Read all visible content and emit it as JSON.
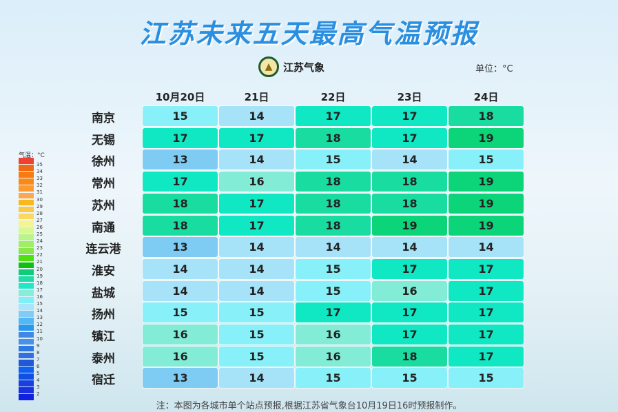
{
  "title": "江苏未来五天最高气温预报",
  "logo_text": "江苏气象",
  "unit": "单位：°C",
  "legend": {
    "title": "气温：°C",
    "labels": [
      "35",
      "34",
      "33",
      "32",
      "31",
      "30",
      "29",
      "28",
      "27",
      "26",
      "25",
      "24",
      "23",
      "22",
      "21",
      "20",
      "19",
      "18",
      "17",
      "16",
      "15",
      "14",
      "13",
      "12",
      "11",
      "10",
      "9",
      "8",
      "7",
      "6",
      "5",
      "4",
      "3",
      "2"
    ],
    "colors": [
      "#f04030",
      "#f06a10",
      "#f87a10",
      "#fa8a18",
      "#fa9a30",
      "#fca850",
      "#fcb818",
      "#fcc848",
      "#fcd860",
      "#f4f490",
      "#d8f890",
      "#b8f48a",
      "#a0ee68",
      "#88e848",
      "#50e010",
      "#10c010",
      "#10cc78",
      "#20dca8",
      "#20e8c8",
      "#88ecd8",
      "#80f0f8",
      "#a8e4fa",
      "#80ccf4",
      "#50b8f4",
      "#2898ee",
      "#4088e8",
      "#4890e8",
      "#3078e0",
      "#3070e0",
      "#2058d8",
      "#1060f0",
      "#1050e0",
      "#1840e0",
      "#1830e0",
      "#1020e0"
    ]
  },
  "colors": {
    "13": "#7ecbf4",
    "14": "#a6e2f8",
    "15": "#88f0f8",
    "16": "#82ecd6",
    "17": "#10e8c4",
    "18": "#18dca0",
    "19": "#0cd478"
  },
  "columns": [
    "10月20日",
    "21日",
    "22日",
    "23日",
    "24日"
  ],
  "rows": [
    {
      "city": "南京",
      "t": [
        15,
        14,
        17,
        17,
        18
      ]
    },
    {
      "city": "无锡",
      "t": [
        17,
        17,
        18,
        17,
        19
      ]
    },
    {
      "city": "徐州",
      "t": [
        13,
        14,
        15,
        14,
        15
      ]
    },
    {
      "city": "常州",
      "t": [
        17,
        16,
        18,
        18,
        19
      ]
    },
    {
      "city": "苏州",
      "t": [
        18,
        17,
        18,
        18,
        19
      ]
    },
    {
      "city": "南通",
      "t": [
        18,
        17,
        18,
        19,
        19
      ]
    },
    {
      "city": "连云港",
      "t": [
        13,
        14,
        14,
        14,
        14
      ]
    },
    {
      "city": "淮安",
      "t": [
        14,
        14,
        15,
        17,
        17
      ]
    },
    {
      "city": "盐城",
      "t": [
        14,
        14,
        15,
        16,
        17
      ]
    },
    {
      "city": "扬州",
      "t": [
        15,
        15,
        17,
        17,
        17
      ]
    },
    {
      "city": "镇江",
      "t": [
        16,
        15,
        16,
        17,
        17
      ]
    },
    {
      "city": "泰州",
      "t": [
        16,
        15,
        16,
        18,
        17
      ]
    },
    {
      "city": "宿迁",
      "t": [
        13,
        14,
        15,
        15,
        15
      ]
    }
  ],
  "note": "注：本图为各城市单个站点预报,根据江苏省气象台10月19日16时预报制作。"
}
